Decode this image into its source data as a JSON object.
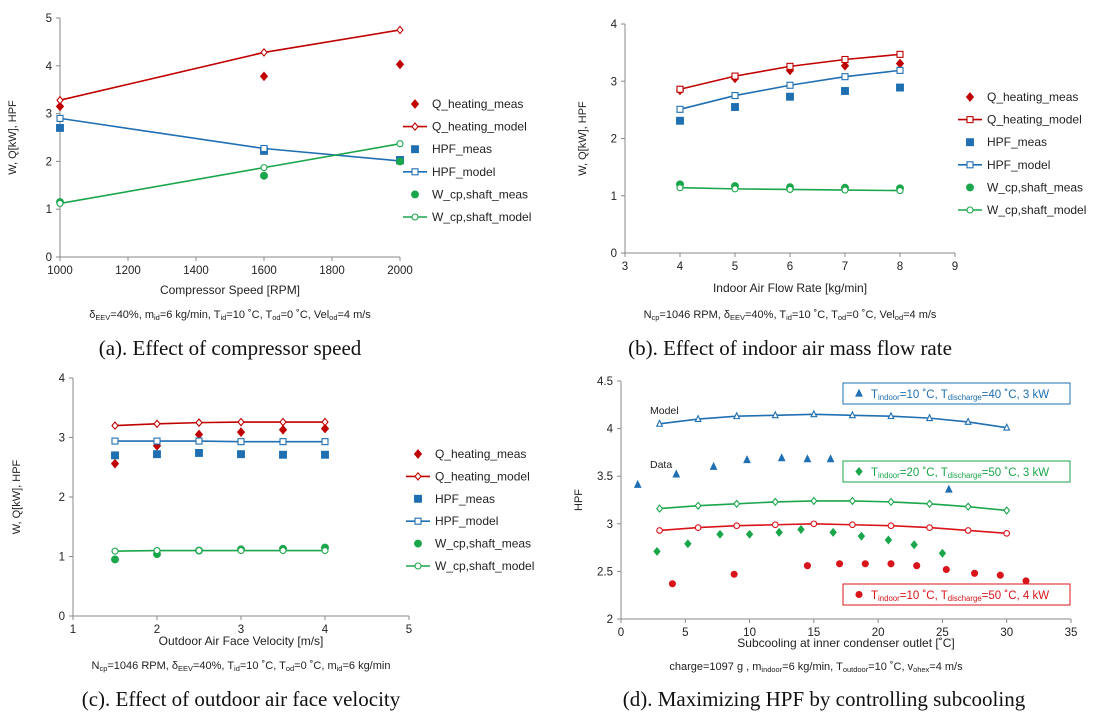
{
  "chart_data": [
    {
      "type": "line",
      "caption": "(a). Effect of compressor speed",
      "conditions": "δEEV=40%, mid=6 kg/min, Tid=10 °C, Tod=0 °C, Velod=4 m/s",
      "conditions_parts": [
        [
          "δ",
          ""
        ],
        [
          "EEV",
          "sub"
        ],
        [
          "=40%, m",
          ""
        ],
        [
          "id",
          "sub"
        ],
        [
          "=6 kg/min, T",
          ""
        ],
        [
          "id",
          "sub"
        ],
        [
          "=10 ˚C, T",
          ""
        ],
        [
          "od",
          "sub"
        ],
        [
          "=0 ˚C, Vel",
          ""
        ],
        [
          "od",
          "sub"
        ],
        [
          "=4 m/s",
          ""
        ]
      ],
      "xlabel": "Compressor Speed [RPM]",
      "ylabel": "W, Q[kW], HPF",
      "xlim": [
        1000,
        2000
      ],
      "ylim": [
        0,
        5
      ],
      "xticks": [
        1000,
        1200,
        1400,
        1600,
        1800,
        2000
      ],
      "yticks": [
        0,
        1,
        2,
        3,
        4,
        5
      ],
      "legend_position": "right",
      "series": [
        {
          "name": "Q_heating_meas",
          "color": "#c00000",
          "marker": "diamond",
          "line": false,
          "filled": true,
          "x": [
            1000,
            1600,
            2000
          ],
          "y": [
            3.15,
            3.78,
            4.03
          ]
        },
        {
          "name": "Q_heating_model",
          "color": "#c00000",
          "marker": "diamond",
          "line": true,
          "filled": false,
          "x": [
            1000,
            1600,
            2000
          ],
          "y": [
            3.28,
            4.28,
            4.75
          ]
        },
        {
          "name": "HPF_meas",
          "color": "#1f6fb2",
          "marker": "square",
          "line": false,
          "filled": true,
          "x": [
            1000,
            1600,
            2000
          ],
          "y": [
            2.7,
            2.22,
            2.03
          ]
        },
        {
          "name": "HPF_model",
          "color": "#1f6fb2",
          "marker": "square",
          "line": true,
          "filled": false,
          "x": [
            1000,
            1600,
            2000
          ],
          "y": [
            2.9,
            2.27,
            2.01
          ]
        },
        {
          "name": "W_cp,shaft_meas",
          "color": "#1aa64b",
          "marker": "circle",
          "line": false,
          "filled": true,
          "x": [
            1000,
            1600,
            2000
          ],
          "y": [
            1.15,
            1.7,
            2.0
          ]
        },
        {
          "name": "W_cp,shaft_model",
          "color": "#1aa64b",
          "marker": "circle",
          "line": true,
          "filled": false,
          "x": [
            1000,
            1600,
            2000
          ],
          "y": [
            1.12,
            1.87,
            2.37
          ]
        }
      ]
    },
    {
      "type": "line",
      "caption": "(b). Effect of indoor air mass flow rate",
      "conditions": "Ncp=1046 RPM, δEEV=40%, Tid=10 °C, Tod=0 °C, Velod=4 m/s",
      "conditions_parts": [
        [
          "N",
          ""
        ],
        [
          "cp",
          "sub"
        ],
        [
          "=1046 RPM, δ",
          ""
        ],
        [
          "EEV",
          "sub"
        ],
        [
          "=40%, T",
          ""
        ],
        [
          "id",
          "sub"
        ],
        [
          "=10 ˚C, T",
          ""
        ],
        [
          "od",
          "sub"
        ],
        [
          "=0 ˚C, Vel",
          ""
        ],
        [
          "od",
          "sub"
        ],
        [
          "=4 m/s",
          ""
        ]
      ],
      "xlabel": "Indoor Air Flow Rate [kg/min]",
      "ylabel": "W, Q[kW], HPF",
      "xlim": [
        3,
        9
      ],
      "ylim": [
        0,
        4
      ],
      "xticks": [
        3,
        4,
        5,
        6,
        7,
        8,
        9
      ],
      "yticks": [
        0,
        1,
        2,
        3,
        4
      ],
      "legend_position": "right",
      "series": [
        {
          "name": "Q_heating_meas",
          "color": "#c00000",
          "marker": "diamond",
          "line": false,
          "filled": true,
          "x": [
            4,
            5,
            6,
            7,
            8
          ],
          "y": [
            2.84,
            3.05,
            3.19,
            3.27,
            3.31
          ]
        },
        {
          "name": "Q_heating_model",
          "color": "#c00000",
          "marker": "square",
          "line": true,
          "filled": false,
          "x": [
            4,
            5,
            6,
            7,
            8
          ],
          "y": [
            2.86,
            3.09,
            3.26,
            3.38,
            3.47
          ]
        },
        {
          "name": "HPF_meas",
          "color": "#1f6fb2",
          "marker": "square",
          "line": false,
          "filled": true,
          "x": [
            4,
            5,
            6,
            7,
            8
          ],
          "y": [
            2.31,
            2.55,
            2.73,
            2.83,
            2.89
          ]
        },
        {
          "name": "HPF_model",
          "color": "#1f6fb2",
          "marker": "square",
          "line": true,
          "filled": false,
          "x": [
            4,
            5,
            6,
            7,
            8
          ],
          "y": [
            2.51,
            2.75,
            2.93,
            3.08,
            3.19
          ]
        },
        {
          "name": "W_cp,shaft_meas",
          "color": "#1aa64b",
          "marker": "circle",
          "line": false,
          "filled": true,
          "x": [
            4,
            5,
            6,
            7,
            8
          ],
          "y": [
            1.2,
            1.17,
            1.15,
            1.14,
            1.13
          ]
        },
        {
          "name": "W_cp,shaft_model",
          "color": "#1aa64b",
          "marker": "circle",
          "line": true,
          "filled": false,
          "x": [
            4,
            5,
            6,
            7,
            8
          ],
          "y": [
            1.14,
            1.12,
            1.11,
            1.1,
            1.09
          ]
        }
      ]
    },
    {
      "type": "line",
      "caption": "(c). Effect of outdoor air face velocity",
      "conditions": "Ncp=1046 RPM, δEEV=40%, Tid=10 °C, Tod=0 °C, mid=6 kg/min",
      "conditions_parts": [
        [
          "N",
          ""
        ],
        [
          "cp",
          "sub"
        ],
        [
          "=1046 RPM, δ",
          ""
        ],
        [
          "EEV",
          "sub"
        ],
        [
          "=40%, T",
          ""
        ],
        [
          "id",
          "sub"
        ],
        [
          "=10 ˚C, T",
          ""
        ],
        [
          "od",
          "sub"
        ],
        [
          "=0 ˚C, m",
          ""
        ],
        [
          "id",
          "sub"
        ],
        [
          "=6 kg/min",
          ""
        ]
      ],
      "xlabel": "Outdoor Air Face Velocity [m/s]",
      "ylabel": "W, Q[kW], HPF",
      "xlim": [
        1,
        5
      ],
      "ylim": [
        0,
        4
      ],
      "xticks": [
        1,
        2,
        3,
        4,
        5
      ],
      "yticks": [
        0,
        1,
        2,
        3,
        4
      ],
      "legend_position": "right",
      "series": [
        {
          "name": "Q_heating_meas",
          "color": "#c00000",
          "marker": "diamond",
          "line": false,
          "filled": true,
          "x": [
            1.5,
            2,
            2.5,
            3,
            3.5,
            4
          ],
          "y": [
            2.56,
            2.86,
            3.05,
            3.09,
            3.13,
            3.15
          ]
        },
        {
          "name": "Q_heating_model",
          "color": "#c00000",
          "marker": "diamond",
          "line": true,
          "filled": false,
          "x": [
            1.5,
            2,
            2.5,
            3,
            3.5,
            4
          ],
          "y": [
            3.2,
            3.23,
            3.25,
            3.26,
            3.26,
            3.26
          ]
        },
        {
          "name": "HPF_meas",
          "color": "#1f6fb2",
          "marker": "square",
          "line": false,
          "filled": true,
          "x": [
            1.5,
            2,
            2.5,
            3,
            3.5,
            4
          ],
          "y": [
            2.7,
            2.72,
            2.74,
            2.72,
            2.71,
            2.71
          ]
        },
        {
          "name": "HPF_model",
          "color": "#1f6fb2",
          "marker": "square",
          "line": true,
          "filled": false,
          "x": [
            1.5,
            2,
            2.5,
            3,
            3.5,
            4
          ],
          "y": [
            2.94,
            2.94,
            2.94,
            2.93,
            2.93,
            2.93
          ]
        },
        {
          "name": "W_cp,shaft_meas",
          "color": "#1aa64b",
          "marker": "circle",
          "line": false,
          "filled": true,
          "x": [
            1.5,
            2,
            2.5,
            3,
            3.5,
            4
          ],
          "y": [
            0.95,
            1.04,
            1.1,
            1.12,
            1.13,
            1.15
          ]
        },
        {
          "name": "W_cp,shaft_model",
          "color": "#1aa64b",
          "marker": "circle",
          "line": true,
          "filled": false,
          "x": [
            1.5,
            2,
            2.5,
            3,
            3.5,
            4
          ],
          "y": [
            1.09,
            1.1,
            1.1,
            1.1,
            1.1,
            1.1
          ]
        }
      ]
    },
    {
      "type": "scatter",
      "caption": "(d). Maximizing HPF by controlling subcooling",
      "conditions": "charge=1097 g , mindoor=6 kg/min, Toutdoor=10 °C, vohex=4 m/s",
      "conditions_parts": [
        [
          "charge=1097 g , m",
          ""
        ],
        [
          "indoor",
          "sub"
        ],
        [
          "=6 kg/min, T",
          ""
        ],
        [
          "outdoor",
          "sub"
        ],
        [
          "=10 ˚C, v",
          ""
        ],
        [
          "ohex",
          "sub"
        ],
        [
          "=4 m/s",
          ""
        ]
      ],
      "xlabel": "Subcooling at inner condenser outlet [˚C]",
      "ylabel": "HPF",
      "xlim": [
        0,
        35
      ],
      "ylim": [
        2,
        4.5
      ],
      "xticks": [
        0,
        5,
        10,
        15,
        20,
        25,
        30,
        35
      ],
      "yticks": [
        2,
        2.5,
        3,
        3.5,
        4,
        4.5
      ],
      "annotations": [
        "Model",
        "Data"
      ],
      "series": [
        {
          "name": "Tindoor=10 °C, Tdischarge=40 °C, 3 kW",
          "name_parts": [
            [
              "T",
              ""
            ],
            [
              "indoor",
              "sub"
            ],
            [
              "=10 ˚C, T",
              ""
            ],
            [
              "discharge",
              "sub"
            ],
            [
              "=40 ˚C, 3 kW",
              ""
            ]
          ],
          "color": "#1f6fb2",
          "marker": "triangle",
          "model_x": [
            3,
            6,
            9,
            12,
            15,
            18,
            21,
            24,
            27,
            30
          ],
          "model_y": [
            4.05,
            4.1,
            4.13,
            4.14,
            4.15,
            4.14,
            4.13,
            4.11,
            4.07,
            4.01
          ],
          "data_x": [
            1.3,
            4.3,
            7.2,
            9.8,
            12.5,
            14.5,
            16.3,
            18.5,
            20.5,
            22.7,
            25.5
          ],
          "data_y": [
            3.41,
            3.52,
            3.6,
            3.67,
            3.69,
            3.68,
            3.68,
            3.62,
            3.55,
            3.47,
            3.36
          ]
        },
        {
          "name": "Tindoor=20 °C, Tdischarge=50 °C, 3 kW",
          "name_parts": [
            [
              "T",
              ""
            ],
            [
              "indoor",
              "sub"
            ],
            [
              "=20 ˚C, T",
              ""
            ],
            [
              "discharge",
              "sub"
            ],
            [
              "=50 ˚C, 3 kW",
              ""
            ]
          ],
          "color": "#1aa64b",
          "marker": "diamond",
          "model_x": [
            3,
            6,
            9,
            12,
            15,
            18,
            21,
            24,
            27,
            30
          ],
          "model_y": [
            3.16,
            3.19,
            3.21,
            3.23,
            3.24,
            3.24,
            3.23,
            3.21,
            3.18,
            3.14
          ],
          "data_x": [
            2.8,
            5.2,
            7.7,
            10.0,
            12.3,
            14.0,
            16.5,
            18.7,
            20.8,
            22.8,
            25.0
          ],
          "data_y": [
            2.71,
            2.79,
            2.89,
            2.89,
            2.91,
            2.94,
            2.91,
            2.87,
            2.83,
            2.78,
            2.69
          ]
        },
        {
          "name": "Tindoor=10 °C, Tdischarge=50 °C, 4 kW",
          "name_parts": [
            [
              "T",
              ""
            ],
            [
              "indoor",
              "sub"
            ],
            [
              "=10 ˚C, T",
              ""
            ],
            [
              "discharge",
              "sub"
            ],
            [
              "=50 ˚C, 4 kW",
              ""
            ]
          ],
          "color": "#d9141b",
          "marker": "circle",
          "model_x": [
            3,
            6,
            9,
            12,
            15,
            18,
            21,
            24,
            27,
            30
          ],
          "model_y": [
            2.93,
            2.96,
            2.98,
            2.99,
            3.0,
            2.99,
            2.98,
            2.96,
            2.93,
            2.9
          ],
          "data_x": [
            4.0,
            8.8,
            14.5,
            17.0,
            19.0,
            21.0,
            23.0,
            25.3,
            27.5,
            29.5,
            31.5
          ],
          "data_y": [
            2.37,
            2.47,
            2.56,
            2.58,
            2.58,
            2.58,
            2.56,
            2.52,
            2.48,
            2.46,
            2.4
          ]
        }
      ]
    }
  ]
}
